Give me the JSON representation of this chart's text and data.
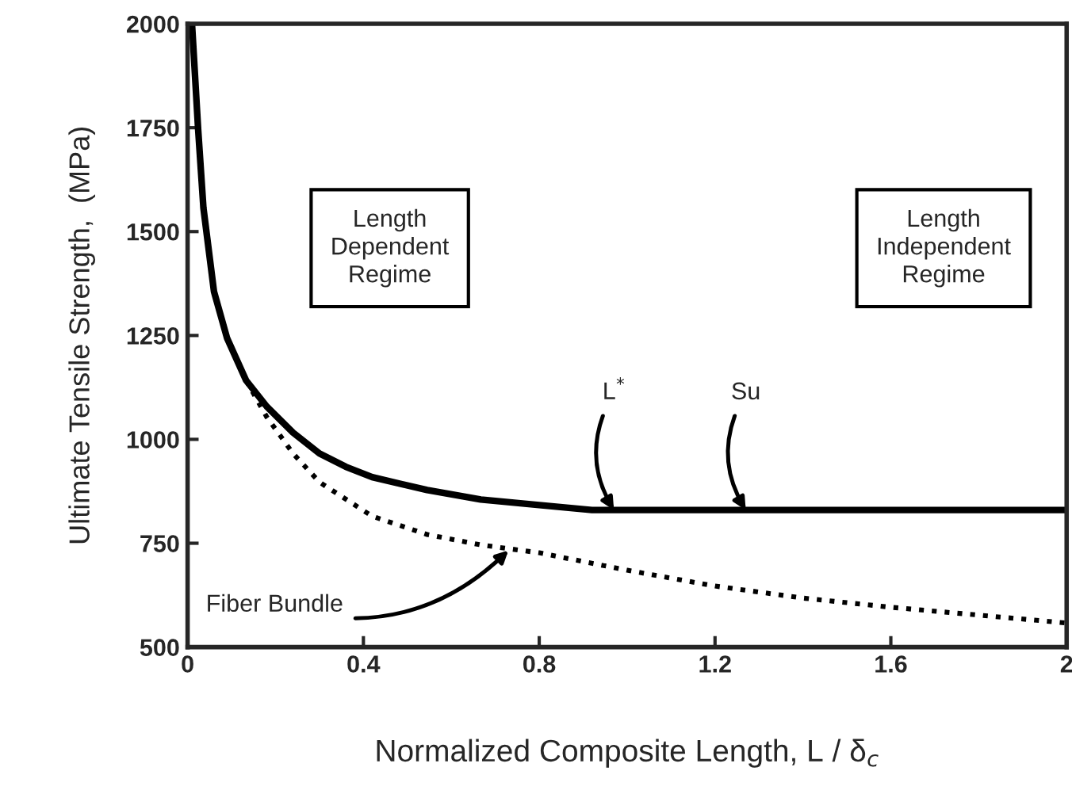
{
  "chart_data": {
    "type": "line",
    "xlabel": "Normalized Composite Length, L / δ$_{c}$",
    "ylabel": "Ultimate Tensile Strength,  (MPa)",
    "xlim": [
      0,
      2
    ],
    "ylim": [
      500,
      2000
    ],
    "xticks": [
      0,
      0.4,
      0.8,
      1.2,
      1.6,
      2
    ],
    "yticks": [
      500,
      750,
      1000,
      1250,
      1500,
      1750,
      2000
    ],
    "grid": false,
    "legend": false,
    "marker": "none",
    "series": [
      {
        "color": "#000000",
        "line_style": "solid",
        "x": [
          0.01,
          0.024,
          0.036,
          0.06,
          0.09,
          0.133,
          0.18,
          0.24,
          0.3,
          0.36,
          0.42,
          0.545,
          0.667,
          0.8,
          0.92,
          1.2,
          1.6,
          2
        ],
        "values": [
          2000,
          1746,
          1557,
          1356,
          1243,
          1142,
          1079,
          1016,
          966,
          934,
          909,
          878,
          855,
          842,
          830,
          830,
          830,
          830
        ]
      },
      {
        "color": "#000000",
        "line_style": "dotted",
        "x": [
          0.133,
          0.18,
          0.24,
          0.3,
          0.42,
          0.545,
          0.667,
          0.8,
          1.0,
          1.2,
          1.4,
          1.6,
          1.8,
          2
        ],
        "values": [
          1142,
          1054,
          966,
          897,
          815,
          771,
          746,
          727,
          685,
          647,
          618,
          596,
          577,
          558
        ]
      }
    ],
    "annotations": [
      "Length\nDependent\nRegime",
      "Length\nIndependent\nRegime",
      {
        "text": "L$^{*}$",
        "x": 0.97,
        "y": 830
      },
      {
        "text": "Su",
        "x": 1.27,
        "y": 830
      },
      {
        "text": "Fiber Bundle",
        "x": 0.73,
        "y": 733
      }
    ]
  }
}
